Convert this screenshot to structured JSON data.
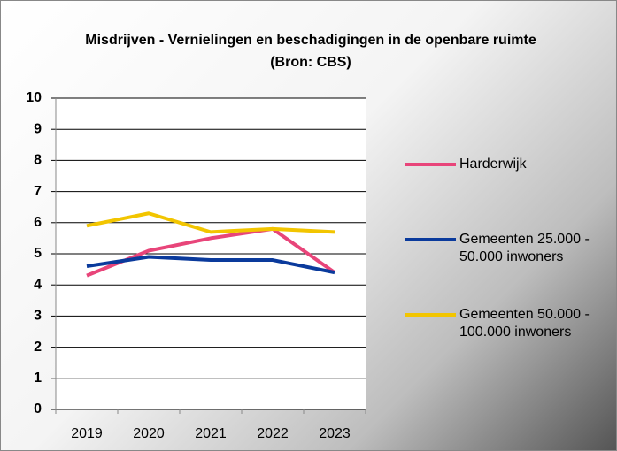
{
  "chart_data": {
    "type": "line",
    "title": "Misdrijven - Vernielingen en beschadigingen in de openbare ruimte (Bron: CBS)",
    "categories": [
      "2019",
      "2020",
      "2021",
      "2022",
      "2023"
    ],
    "series": [
      {
        "name": "Harderwijk",
        "color": "#e8457a",
        "values": [
          4.3,
          5.1,
          5.5,
          5.8,
          4.4
        ]
      },
      {
        "name": "Gemeenten 25.000 - 50.000 inwoners",
        "color": "#0a3a9c",
        "values": [
          4.6,
          4.9,
          4.8,
          4.8,
          4.4
        ]
      },
      {
        "name": "Gemeenten 50.000 - 100.000 inwoners",
        "color": "#f2c500",
        "values": [
          5.9,
          6.3,
          5.7,
          5.8,
          5.7
        ]
      }
    ],
    "ylim": [
      0,
      10
    ],
    "yticks": [
      0,
      1,
      2,
      3,
      4,
      5,
      6,
      7,
      8,
      9,
      10
    ],
    "grid": true,
    "legend": "right"
  }
}
